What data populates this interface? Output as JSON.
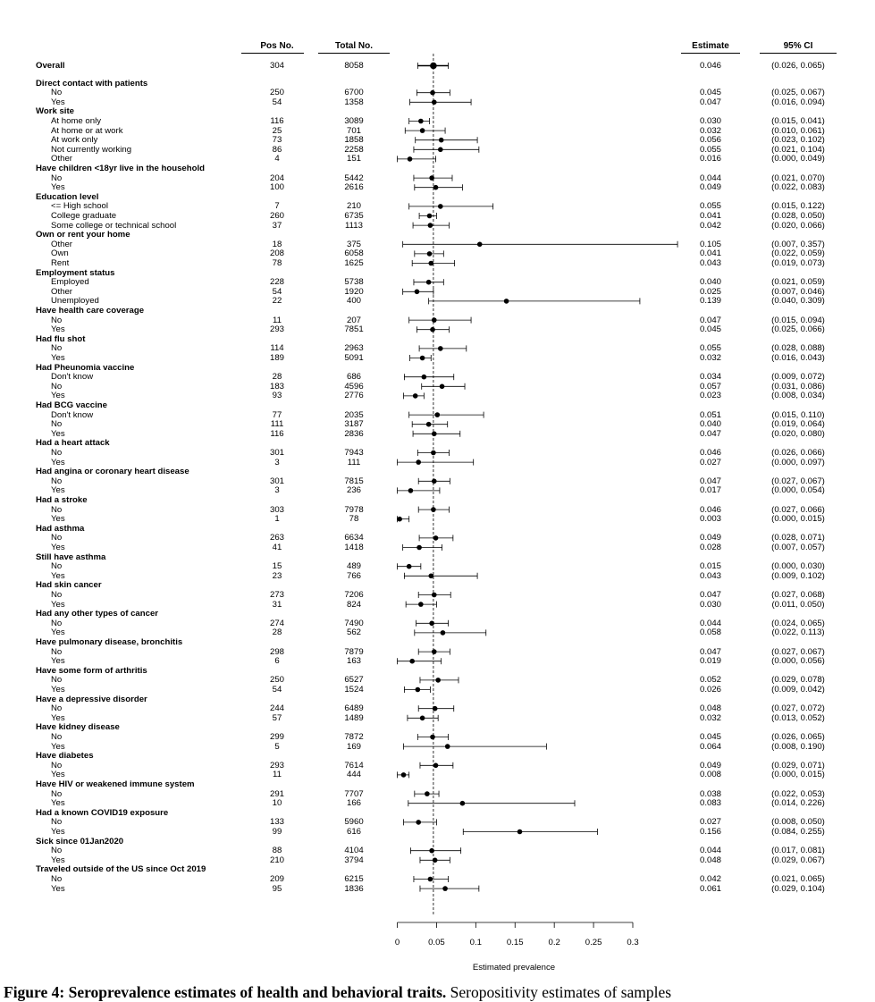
{
  "headers": {
    "pos": "Pos No.",
    "total": "Total No.",
    "estimate": "Estimate",
    "ci": "95% CI"
  },
  "xlabel": "Estimated prevalence",
  "caption": {
    "bold": "Figure 4: Seroprevalence estimates of health and behavioral traits.",
    "text": " Seropositivity estimates of samples"
  },
  "chart_data": {
    "type": "forest",
    "xlim": [
      0,
      0.3
    ],
    "xticks": [
      "0",
      "0.05",
      "0.1",
      "0.15",
      "0.2",
      "0.25",
      "0.3"
    ],
    "reference_line": 0.046,
    "rows": [
      {
        "kind": "overall",
        "label": "Overall",
        "pos": "304",
        "total": "8058",
        "est": "0.046",
        "ci": "(0.026, 0.065)",
        "v": 0.046,
        "lo": 0.026,
        "hi": 0.065
      },
      {
        "kind": "group",
        "label": "Direct contact with patients"
      },
      {
        "kind": "sub",
        "label": "No",
        "pos": "250",
        "total": "6700",
        "est": "0.045",
        "ci": "(0.025, 0.067)",
        "v": 0.045,
        "lo": 0.025,
        "hi": 0.067
      },
      {
        "kind": "sub",
        "label": "Yes",
        "pos": "54",
        "total": "1358",
        "est": "0.047",
        "ci": "(0.016, 0.094)",
        "v": 0.047,
        "lo": 0.016,
        "hi": 0.094
      },
      {
        "kind": "group",
        "label": "Work site"
      },
      {
        "kind": "sub",
        "label": "At home only",
        "pos": "116",
        "total": "3089",
        "est": "0.030",
        "ci": "(0.015, 0.041)",
        "v": 0.03,
        "lo": 0.015,
        "hi": 0.041
      },
      {
        "kind": "sub",
        "label": "At home or at work",
        "pos": "25",
        "total": "701",
        "est": "0.032",
        "ci": "(0.010, 0.061)",
        "v": 0.032,
        "lo": 0.01,
        "hi": 0.061
      },
      {
        "kind": "sub",
        "label": "At work only",
        "pos": "73",
        "total": "1858",
        "est": "0.056",
        "ci": "(0.023, 0.102)",
        "v": 0.056,
        "lo": 0.023,
        "hi": 0.102
      },
      {
        "kind": "sub",
        "label": "Not currently working",
        "pos": "86",
        "total": "2258",
        "est": "0.055",
        "ci": "(0.021, 0.104)",
        "v": 0.055,
        "lo": 0.021,
        "hi": 0.104
      },
      {
        "kind": "sub",
        "label": "Other",
        "pos": "4",
        "total": "151",
        "est": "0.016",
        "ci": "(0.000, 0.049)",
        "v": 0.016,
        "lo": 0.0,
        "hi": 0.049
      },
      {
        "kind": "group",
        "label": "Have children <18yr live in the household"
      },
      {
        "kind": "sub",
        "label": "No",
        "pos": "204",
        "total": "5442",
        "est": "0.044",
        "ci": "(0.021, 0.070)",
        "v": 0.044,
        "lo": 0.021,
        "hi": 0.07
      },
      {
        "kind": "sub",
        "label": "Yes",
        "pos": "100",
        "total": "2616",
        "est": "0.049",
        "ci": "(0.022, 0.083)",
        "v": 0.049,
        "lo": 0.022,
        "hi": 0.083
      },
      {
        "kind": "group",
        "label": "Education level"
      },
      {
        "kind": "sub",
        "label": "<= High school",
        "pos": "7",
        "total": "210",
        "est": "0.055",
        "ci": "(0.015, 0.122)",
        "v": 0.055,
        "lo": 0.015,
        "hi": 0.122
      },
      {
        "kind": "sub",
        "label": "College graduate",
        "pos": "260",
        "total": "6735",
        "est": "0.041",
        "ci": "(0.028, 0.050)",
        "v": 0.041,
        "lo": 0.028,
        "hi": 0.05
      },
      {
        "kind": "sub",
        "label": "Some college or technical school",
        "pos": "37",
        "total": "1113",
        "est": "0.042",
        "ci": "(0.020, 0.066)",
        "v": 0.042,
        "lo": 0.02,
        "hi": 0.066
      },
      {
        "kind": "group",
        "label": "Own or rent your home"
      },
      {
        "kind": "sub",
        "label": "Other",
        "pos": "18",
        "total": "375",
        "est": "0.105",
        "ci": "(0.007, 0.357)",
        "v": 0.105,
        "lo": 0.007,
        "hi": 0.357
      },
      {
        "kind": "sub",
        "label": "Own",
        "pos": "208",
        "total": "6058",
        "est": "0.041",
        "ci": "(0.022, 0.059)",
        "v": 0.041,
        "lo": 0.022,
        "hi": 0.059
      },
      {
        "kind": "sub",
        "label": "Rent",
        "pos": "78",
        "total": "1625",
        "est": "0.043",
        "ci": "(0.019, 0.073)",
        "v": 0.043,
        "lo": 0.019,
        "hi": 0.073
      },
      {
        "kind": "group",
        "label": "Employment status"
      },
      {
        "kind": "sub",
        "label": "Employed",
        "pos": "228",
        "total": "5738",
        "est": "0.040",
        "ci": "(0.021, 0.059)",
        "v": 0.04,
        "lo": 0.021,
        "hi": 0.059
      },
      {
        "kind": "sub",
        "label": "Other",
        "pos": "54",
        "total": "1920",
        "est": "0.025",
        "ci": "(0.007, 0.046)",
        "v": 0.025,
        "lo": 0.007,
        "hi": 0.046
      },
      {
        "kind": "sub",
        "label": "Unemployed",
        "pos": "22",
        "total": "400",
        "est": "0.139",
        "ci": "(0.040, 0.309)",
        "v": 0.139,
        "lo": 0.04,
        "hi": 0.309
      },
      {
        "kind": "group",
        "label": "Have health care coverage"
      },
      {
        "kind": "sub",
        "label": "No",
        "pos": "11",
        "total": "207",
        "est": "0.047",
        "ci": "(0.015, 0.094)",
        "v": 0.047,
        "lo": 0.015,
        "hi": 0.094
      },
      {
        "kind": "sub",
        "label": "Yes",
        "pos": "293",
        "total": "7851",
        "est": "0.045",
        "ci": "(0.025, 0.066)",
        "v": 0.045,
        "lo": 0.025,
        "hi": 0.066
      },
      {
        "kind": "group",
        "label": "Had flu shot"
      },
      {
        "kind": "sub",
        "label": "No",
        "pos": "114",
        "total": "2963",
        "est": "0.055",
        "ci": "(0.028, 0.088)",
        "v": 0.055,
        "lo": 0.028,
        "hi": 0.088
      },
      {
        "kind": "sub",
        "label": "Yes",
        "pos": "189",
        "total": "5091",
        "est": "0.032",
        "ci": "(0.016, 0.043)",
        "v": 0.032,
        "lo": 0.016,
        "hi": 0.043
      },
      {
        "kind": "group",
        "label": "Had Pheunomia vaccine"
      },
      {
        "kind": "sub",
        "label": "Don't know",
        "pos": "28",
        "total": "686",
        "est": "0.034",
        "ci": "(0.009, 0.072)",
        "v": 0.034,
        "lo": 0.009,
        "hi": 0.072
      },
      {
        "kind": "sub",
        "label": "No",
        "pos": "183",
        "total": "4596",
        "est": "0.057",
        "ci": "(0.031, 0.086)",
        "v": 0.057,
        "lo": 0.031,
        "hi": 0.086
      },
      {
        "kind": "sub",
        "label": "Yes",
        "pos": "93",
        "total": "2776",
        "est": "0.023",
        "ci": "(0.008, 0.034)",
        "v": 0.023,
        "lo": 0.008,
        "hi": 0.034
      },
      {
        "kind": "group",
        "label": "Had BCG vaccine"
      },
      {
        "kind": "sub",
        "label": "Don't know",
        "pos": "77",
        "total": "2035",
        "est": "0.051",
        "ci": "(0.015, 0.110)",
        "v": 0.051,
        "lo": 0.015,
        "hi": 0.11
      },
      {
        "kind": "sub",
        "label": "No",
        "pos": "111",
        "total": "3187",
        "est": "0.040",
        "ci": "(0.019, 0.064)",
        "v": 0.04,
        "lo": 0.019,
        "hi": 0.064
      },
      {
        "kind": "sub",
        "label": "Yes",
        "pos": "116",
        "total": "2836",
        "est": "0.047",
        "ci": "(0.020, 0.080)",
        "v": 0.047,
        "lo": 0.02,
        "hi": 0.08
      },
      {
        "kind": "group",
        "label": "Had a heart attack"
      },
      {
        "kind": "sub",
        "label": "No",
        "pos": "301",
        "total": "7943",
        "est": "0.046",
        "ci": "(0.026, 0.066)",
        "v": 0.046,
        "lo": 0.026,
        "hi": 0.066
      },
      {
        "kind": "sub",
        "label": "Yes",
        "pos": "3",
        "total": "111",
        "est": "0.027",
        "ci": "(0.000, 0.097)",
        "v": 0.027,
        "lo": 0.0,
        "hi": 0.097
      },
      {
        "kind": "group",
        "label": "Had angina or coronary heart disease"
      },
      {
        "kind": "sub",
        "label": "No",
        "pos": "301",
        "total": "7815",
        "est": "0.047",
        "ci": "(0.027, 0.067)",
        "v": 0.047,
        "lo": 0.027,
        "hi": 0.067
      },
      {
        "kind": "sub",
        "label": "Yes",
        "pos": "3",
        "total": "236",
        "est": "0.017",
        "ci": "(0.000, 0.054)",
        "v": 0.017,
        "lo": 0.0,
        "hi": 0.054
      },
      {
        "kind": "group",
        "label": "Had a stroke"
      },
      {
        "kind": "sub",
        "label": "No",
        "pos": "303",
        "total": "7978",
        "est": "0.046",
        "ci": "(0.027, 0.066)",
        "v": 0.046,
        "lo": 0.027,
        "hi": 0.066
      },
      {
        "kind": "sub",
        "label": "Yes",
        "pos": "1",
        "total": "78",
        "est": "0.003",
        "ci": "(0.000, 0.015)",
        "v": 0.003,
        "lo": 0.0,
        "hi": 0.015
      },
      {
        "kind": "group",
        "label": "Had asthma"
      },
      {
        "kind": "sub",
        "label": "No",
        "pos": "263",
        "total": "6634",
        "est": "0.049",
        "ci": "(0.028, 0.071)",
        "v": 0.049,
        "lo": 0.028,
        "hi": 0.071
      },
      {
        "kind": "sub",
        "label": "Yes",
        "pos": "41",
        "total": "1418",
        "est": "0.028",
        "ci": "(0.007, 0.057)",
        "v": 0.028,
        "lo": 0.007,
        "hi": 0.057
      },
      {
        "kind": "group",
        "label": "Still have asthma"
      },
      {
        "kind": "sub",
        "label": "No",
        "pos": "15",
        "total": "489",
        "est": "0.015",
        "ci": "(0.000, 0.030)",
        "v": 0.015,
        "lo": 0.0,
        "hi": 0.03
      },
      {
        "kind": "sub",
        "label": "Yes",
        "pos": "23",
        "total": "766",
        "est": "0.043",
        "ci": "(0.009, 0.102)",
        "v": 0.043,
        "lo": 0.009,
        "hi": 0.102
      },
      {
        "kind": "group",
        "label": "Had skin cancer"
      },
      {
        "kind": "sub",
        "label": "No",
        "pos": "273",
        "total": "7206",
        "est": "0.047",
        "ci": "(0.027, 0.068)",
        "v": 0.047,
        "lo": 0.027,
        "hi": 0.068
      },
      {
        "kind": "sub",
        "label": "Yes",
        "pos": "31",
        "total": "824",
        "est": "0.030",
        "ci": "(0.011, 0.050)",
        "v": 0.03,
        "lo": 0.011,
        "hi": 0.05
      },
      {
        "kind": "group",
        "label": "Had any other types of cancer"
      },
      {
        "kind": "sub",
        "label": "No",
        "pos": "274",
        "total": "7490",
        "est": "0.044",
        "ci": "(0.024, 0.065)",
        "v": 0.044,
        "lo": 0.024,
        "hi": 0.065
      },
      {
        "kind": "sub",
        "label": "Yes",
        "pos": "28",
        "total": "562",
        "est": "0.058",
        "ci": "(0.022, 0.113)",
        "v": 0.058,
        "lo": 0.022,
        "hi": 0.113
      },
      {
        "kind": "group",
        "label": "Have pulmonary disease, bronchitis"
      },
      {
        "kind": "sub",
        "label": "No",
        "pos": "298",
        "total": "7879",
        "est": "0.047",
        "ci": "(0.027, 0.067)",
        "v": 0.047,
        "lo": 0.027,
        "hi": 0.067
      },
      {
        "kind": "sub",
        "label": "Yes",
        "pos": "6",
        "total": "163",
        "est": "0.019",
        "ci": "(0.000, 0.056)",
        "v": 0.019,
        "lo": 0.0,
        "hi": 0.056
      },
      {
        "kind": "group",
        "label": "Have some form of arthritis"
      },
      {
        "kind": "sub",
        "label": "No",
        "pos": "250",
        "total": "6527",
        "est": "0.052",
        "ci": "(0.029, 0.078)",
        "v": 0.052,
        "lo": 0.029,
        "hi": 0.078
      },
      {
        "kind": "sub",
        "label": "Yes",
        "pos": "54",
        "total": "1524",
        "est": "0.026",
        "ci": "(0.009, 0.042)",
        "v": 0.026,
        "lo": 0.009,
        "hi": 0.042
      },
      {
        "kind": "group",
        "label": "Have a depressive disorder"
      },
      {
        "kind": "sub",
        "label": "No",
        "pos": "244",
        "total": "6489",
        "est": "0.048",
        "ci": "(0.027, 0.072)",
        "v": 0.048,
        "lo": 0.027,
        "hi": 0.072
      },
      {
        "kind": "sub",
        "label": "Yes",
        "pos": "57",
        "total": "1489",
        "est": "0.032",
        "ci": "(0.013, 0.052)",
        "v": 0.032,
        "lo": 0.013,
        "hi": 0.052
      },
      {
        "kind": "group",
        "label": "Have kidney disease"
      },
      {
        "kind": "sub",
        "label": "No",
        "pos": "299",
        "total": "7872",
        "est": "0.045",
        "ci": "(0.026, 0.065)",
        "v": 0.045,
        "lo": 0.026,
        "hi": 0.065
      },
      {
        "kind": "sub",
        "label": "Yes",
        "pos": "5",
        "total": "169",
        "est": "0.064",
        "ci": "(0.008, 0.190)",
        "v": 0.064,
        "lo": 0.008,
        "hi": 0.19
      },
      {
        "kind": "group",
        "label": "Have diabetes"
      },
      {
        "kind": "sub",
        "label": "No",
        "pos": "293",
        "total": "7614",
        "est": "0.049",
        "ci": "(0.029, 0.071)",
        "v": 0.049,
        "lo": 0.029,
        "hi": 0.071
      },
      {
        "kind": "sub",
        "label": "Yes",
        "pos": "11",
        "total": "444",
        "est": "0.008",
        "ci": "(0.000, 0.015)",
        "v": 0.008,
        "lo": 0.0,
        "hi": 0.015
      },
      {
        "kind": "group",
        "label": "Have HIV or weakened immune system"
      },
      {
        "kind": "sub",
        "label": "No",
        "pos": "291",
        "total": "7707",
        "est": "0.038",
        "ci": "(0.022, 0.053)",
        "v": 0.038,
        "lo": 0.022,
        "hi": 0.053
      },
      {
        "kind": "sub",
        "label": "Yes",
        "pos": "10",
        "total": "166",
        "est": "0.083",
        "ci": "(0.014, 0.226)",
        "v": 0.083,
        "lo": 0.014,
        "hi": 0.226
      },
      {
        "kind": "group",
        "label": "Had a known COVID19 exposure"
      },
      {
        "kind": "sub",
        "label": "No",
        "pos": "133",
        "total": "5960",
        "est": "0.027",
        "ci": "(0.008, 0.050)",
        "v": 0.027,
        "lo": 0.008,
        "hi": 0.05
      },
      {
        "kind": "sub",
        "label": "Yes",
        "pos": "99",
        "total": "616",
        "est": "0.156",
        "ci": "(0.084, 0.255)",
        "v": 0.156,
        "lo": 0.084,
        "hi": 0.255
      },
      {
        "kind": "group",
        "label": "Sick since 01Jan2020"
      },
      {
        "kind": "sub",
        "label": "No",
        "pos": "88",
        "total": "4104",
        "est": "0.044",
        "ci": "(0.017, 0.081)",
        "v": 0.044,
        "lo": 0.017,
        "hi": 0.081
      },
      {
        "kind": "sub",
        "label": "Yes",
        "pos": "210",
        "total": "3794",
        "est": "0.048",
        "ci": "(0.029, 0.067)",
        "v": 0.048,
        "lo": 0.029,
        "hi": 0.067
      },
      {
        "kind": "group",
        "label": "Traveled outside of the US since Oct 2019"
      },
      {
        "kind": "sub",
        "label": "No",
        "pos": "209",
        "total": "6215",
        "est": "0.042",
        "ci": "(0.021, 0.065)",
        "v": 0.042,
        "lo": 0.021,
        "hi": 0.065
      },
      {
        "kind": "sub",
        "label": "Yes",
        "pos": "95",
        "total": "1836",
        "est": "0.061",
        "ci": "(0.029, 0.104)",
        "v": 0.061,
        "lo": 0.029,
        "hi": 0.104
      }
    ]
  }
}
